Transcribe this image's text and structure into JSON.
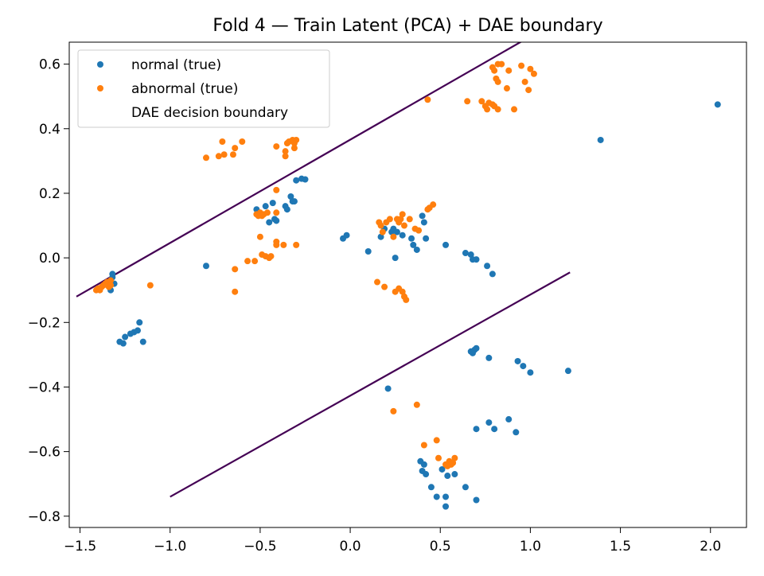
{
  "chart_data": {
    "type": "scatter",
    "title": "Fold 4 — Train Latent (PCA) + DAE boundary",
    "xlabel": "",
    "ylabel": "",
    "xlim": [
      -1.56,
      2.2
    ],
    "ylim": [
      -0.835,
      0.668
    ],
    "x_ticks": [
      -1.5,
      -1.0,
      -0.5,
      0.0,
      0.5,
      1.0,
      1.5,
      2.0
    ],
    "x_tick_labels": [
      "−1.5",
      "−1.0",
      "−0.5",
      "0.0",
      "0.5",
      "1.0",
      "1.5",
      "2.0"
    ],
    "y_ticks": [
      -0.8,
      -0.6,
      -0.4,
      -0.2,
      0.0,
      0.2,
      0.4,
      0.6
    ],
    "y_tick_labels": [
      "−0.8",
      "−0.6",
      "−0.4",
      "−0.2",
      "0.0",
      "0.2",
      "0.4",
      "0.6"
    ],
    "grid": false,
    "legend_position": "upper-left",
    "legend": [
      {
        "label": "normal (true)",
        "kind": "marker",
        "color": "#1f77b4"
      },
      {
        "label": "abnormal (true)",
        "kind": "marker",
        "color": "#ff7f0e"
      },
      {
        "label": "DAE decision boundary",
        "kind": "none",
        "color": "#440154"
      }
    ],
    "series": [
      {
        "name": "normal (true)",
        "color": "#1f77b4",
        "points": [
          [
            -1.34,
            -0.08
          ],
          [
            -1.33,
            -0.07
          ],
          [
            -1.32,
            -0.06
          ],
          [
            -1.33,
            -0.1
          ],
          [
            -1.31,
            -0.08
          ],
          [
            -1.32,
            -0.05
          ],
          [
            -1.28,
            -0.26
          ],
          [
            -1.26,
            -0.265
          ],
          [
            -1.25,
            -0.245
          ],
          [
            -1.22,
            -0.235
          ],
          [
            -1.2,
            -0.23
          ],
          [
            -1.18,
            -0.225
          ],
          [
            -1.17,
            -0.2
          ],
          [
            -1.15,
            -0.26
          ],
          [
            -0.8,
            -0.025
          ],
          [
            -0.52,
            0.15
          ],
          [
            -0.47,
            0.16
          ],
          [
            -0.45,
            0.11
          ],
          [
            -0.43,
            0.17
          ],
          [
            -0.42,
            0.12
          ],
          [
            -0.41,
            0.115
          ],
          [
            -0.36,
            0.16
          ],
          [
            -0.35,
            0.15
          ],
          [
            -0.33,
            0.19
          ],
          [
            -0.32,
            0.175
          ],
          [
            -0.31,
            0.175
          ],
          [
            -0.3,
            0.24
          ],
          [
            -0.27,
            0.245
          ],
          [
            -0.25,
            0.243
          ],
          [
            -0.04,
            0.06
          ],
          [
            -0.02,
            0.07
          ],
          [
            0.1,
            0.02
          ],
          [
            0.17,
            0.065
          ],
          [
            0.19,
            0.09
          ],
          [
            0.23,
            0.08
          ],
          [
            0.24,
            0.09
          ],
          [
            0.25,
            0.0
          ],
          [
            0.26,
            0.08
          ],
          [
            0.29,
            0.07
          ],
          [
            0.34,
            0.06
          ],
          [
            0.35,
            0.04
          ],
          [
            0.37,
            0.025
          ],
          [
            0.4,
            0.13
          ],
          [
            0.41,
            0.11
          ],
          [
            0.42,
            0.06
          ],
          [
            0.53,
            0.04
          ],
          [
            0.64,
            0.015
          ],
          [
            0.67,
            0.01
          ],
          [
            0.68,
            -0.005
          ],
          [
            0.7,
            -0.005
          ],
          [
            0.76,
            -0.025
          ],
          [
            0.79,
            -0.05
          ],
          [
            0.67,
            -0.29
          ],
          [
            0.68,
            -0.295
          ],
          [
            0.69,
            -0.285
          ],
          [
            0.7,
            -0.28
          ],
          [
            0.77,
            -0.31
          ],
          [
            0.93,
            -0.32
          ],
          [
            0.96,
            -0.335
          ],
          [
            1.0,
            -0.355
          ],
          [
            1.21,
            -0.35
          ],
          [
            0.21,
            -0.405
          ],
          [
            0.77,
            -0.51
          ],
          [
            0.8,
            -0.53
          ],
          [
            0.7,
            -0.53
          ],
          [
            0.88,
            -0.5
          ],
          [
            0.92,
            -0.54
          ],
          [
            0.39,
            -0.63
          ],
          [
            0.4,
            -0.66
          ],
          [
            0.41,
            -0.64
          ],
          [
            0.42,
            -0.67
          ],
          [
            0.45,
            -0.71
          ],
          [
            0.48,
            -0.74
          ],
          [
            0.51,
            -0.655
          ],
          [
            0.53,
            -0.74
          ],
          [
            0.53,
            -0.77
          ],
          [
            0.54,
            -0.675
          ],
          [
            0.58,
            -0.67
          ],
          [
            0.64,
            -0.71
          ],
          [
            0.7,
            -0.75
          ],
          [
            1.39,
            0.365
          ],
          [
            2.04,
            0.475
          ]
        ]
      },
      {
        "name": "abnormal (true)",
        "color": "#ff7f0e",
        "points": [
          [
            -1.41,
            -0.1
          ],
          [
            -1.4,
            -0.095
          ],
          [
            -1.39,
            -0.1
          ],
          [
            -1.38,
            -0.09
          ],
          [
            -1.37,
            -0.085
          ],
          [
            -1.36,
            -0.08
          ],
          [
            -1.35,
            -0.075
          ],
          [
            -1.34,
            -0.09
          ],
          [
            -1.33,
            -0.07
          ],
          [
            -1.33,
            -0.085
          ],
          [
            -1.11,
            -0.085
          ],
          [
            -0.8,
            0.31
          ],
          [
            -0.73,
            0.315
          ],
          [
            -0.71,
            0.36
          ],
          [
            -0.7,
            0.32
          ],
          [
            -0.65,
            0.32
          ],
          [
            -0.64,
            0.34
          ],
          [
            -0.6,
            0.36
          ],
          [
            -0.52,
            0.135
          ],
          [
            -0.51,
            0.13
          ],
          [
            -0.5,
            0.14
          ],
          [
            -0.49,
            0.13
          ],
          [
            -0.48,
            0.135
          ],
          [
            -0.46,
            0.14
          ],
          [
            -0.41,
            0.14
          ],
          [
            -0.41,
            0.21
          ],
          [
            -0.5,
            0.065
          ],
          [
            -0.49,
            0.01
          ],
          [
            -0.47,
            0.005
          ],
          [
            -0.45,
            0.0
          ],
          [
            -0.44,
            0.005
          ],
          [
            -0.41,
            0.05
          ],
          [
            -0.41,
            0.04
          ],
          [
            -0.37,
            0.04
          ],
          [
            -0.3,
            0.04
          ],
          [
            -0.53,
            -0.01
          ],
          [
            -0.57,
            -0.01
          ],
          [
            -0.64,
            -0.035
          ],
          [
            -0.64,
            -0.105
          ],
          [
            -0.41,
            0.345
          ],
          [
            -0.36,
            0.33
          ],
          [
            -0.36,
            0.315
          ],
          [
            -0.35,
            0.355
          ],
          [
            -0.34,
            0.36
          ],
          [
            -0.32,
            0.365
          ],
          [
            -0.31,
            0.34
          ],
          [
            -0.31,
            0.355
          ],
          [
            -0.3,
            0.365
          ],
          [
            0.16,
            0.11
          ],
          [
            0.17,
            0.1
          ],
          [
            0.18,
            0.08
          ],
          [
            0.2,
            0.11
          ],
          [
            0.22,
            0.12
          ],
          [
            0.24,
            0.065
          ],
          [
            0.26,
            0.12
          ],
          [
            0.27,
            0.11
          ],
          [
            0.28,
            0.12
          ],
          [
            0.29,
            0.135
          ],
          [
            0.3,
            0.1
          ],
          [
            0.33,
            0.12
          ],
          [
            0.36,
            0.09
          ],
          [
            0.38,
            0.085
          ],
          [
            0.43,
            0.15
          ],
          [
            0.44,
            0.155
          ],
          [
            0.46,
            0.165
          ],
          [
            0.15,
            -0.075
          ],
          [
            0.19,
            -0.09
          ],
          [
            0.27,
            -0.095
          ],
          [
            0.29,
            -0.105
          ],
          [
            0.3,
            -0.12
          ],
          [
            0.31,
            -0.13
          ],
          [
            0.25,
            -0.105
          ],
          [
            0.43,
            0.49
          ],
          [
            0.65,
            0.485
          ],
          [
            0.73,
            0.485
          ],
          [
            0.75,
            0.47
          ],
          [
            0.76,
            0.46
          ],
          [
            0.77,
            0.48
          ],
          [
            0.79,
            0.475
          ],
          [
            0.8,
            0.47
          ],
          [
            0.82,
            0.46
          ],
          [
            0.91,
            0.46
          ],
          [
            0.95,
            0.595
          ],
          [
            0.97,
            0.545
          ],
          [
            0.99,
            0.52
          ],
          [
            1.0,
            0.585
          ],
          [
            1.02,
            0.57
          ],
          [
            0.79,
            0.59
          ],
          [
            0.8,
            0.58
          ],
          [
            0.81,
            0.555
          ],
          [
            0.82,
            0.6
          ],
          [
            0.82,
            0.545
          ],
          [
            0.84,
            0.6
          ],
          [
            0.87,
            0.525
          ],
          [
            0.88,
            0.58
          ],
          [
            0.24,
            -0.475
          ],
          [
            0.37,
            -0.455
          ],
          [
            0.41,
            -0.58
          ],
          [
            0.48,
            -0.565
          ],
          [
            0.49,
            -0.62
          ],
          [
            0.53,
            -0.64
          ],
          [
            0.54,
            -0.645
          ],
          [
            0.55,
            -0.63
          ],
          [
            0.56,
            -0.64
          ],
          [
            0.57,
            -0.635
          ],
          [
            0.58,
            -0.62
          ]
        ]
      }
    ],
    "boundary_lines": [
      {
        "name": "DAE decision boundary",
        "color": "#440154",
        "points": [
          [
            -1.52,
            -0.12
          ],
          [
            1.42,
            0.82
          ]
        ]
      },
      {
        "name": "DAE decision boundary",
        "color": "#440154",
        "points": [
          [
            -1.0,
            -0.74
          ],
          [
            1.22,
            -0.045
          ]
        ]
      }
    ]
  }
}
